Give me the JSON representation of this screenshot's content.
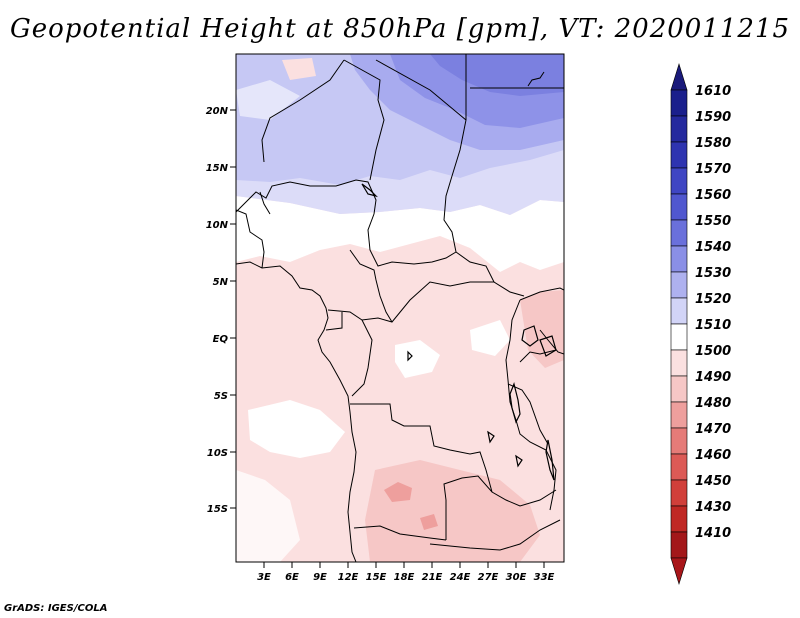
{
  "title": "Geopotential Height at 850hPa [gpm], VT: 2020011215",
  "credit": "GrADS: IGES/COLA",
  "axes": {
    "lat_labels": [
      "20N",
      "15N",
      "10N",
      "5N",
      "EQ",
      "5S",
      "10S",
      "15S"
    ],
    "lon_labels": [
      "3E",
      "6E",
      "9E",
      "12E",
      "15E",
      "18E",
      "21E",
      "24E",
      "27E",
      "30E",
      "33E"
    ]
  },
  "colorbar": {
    "levels": [
      "1610",
      "1590",
      "1580",
      "1570",
      "1560",
      "1550",
      "1540",
      "1530",
      "1520",
      "1510",
      "1500",
      "1490",
      "1480",
      "1470",
      "1460",
      "1450",
      "1430",
      "1410"
    ],
    "colors": [
      "#1a1f8c",
      "#24299e",
      "#2e34b0",
      "#3f46c3",
      "#5057cf",
      "#6a70db",
      "#8a8fe6",
      "#aeb1ef",
      "#d2d4f7",
      "#ffffff",
      "#fbe0e0",
      "#f6c7c6",
      "#ee9f9d",
      "#e57b78",
      "#dc5a56",
      "#d13f3a",
      "#c02824",
      "#a3171a"
    ],
    "top_arrow_color": "#1a1a7a",
    "bottom_arrow_color": "#a8161a"
  }
}
